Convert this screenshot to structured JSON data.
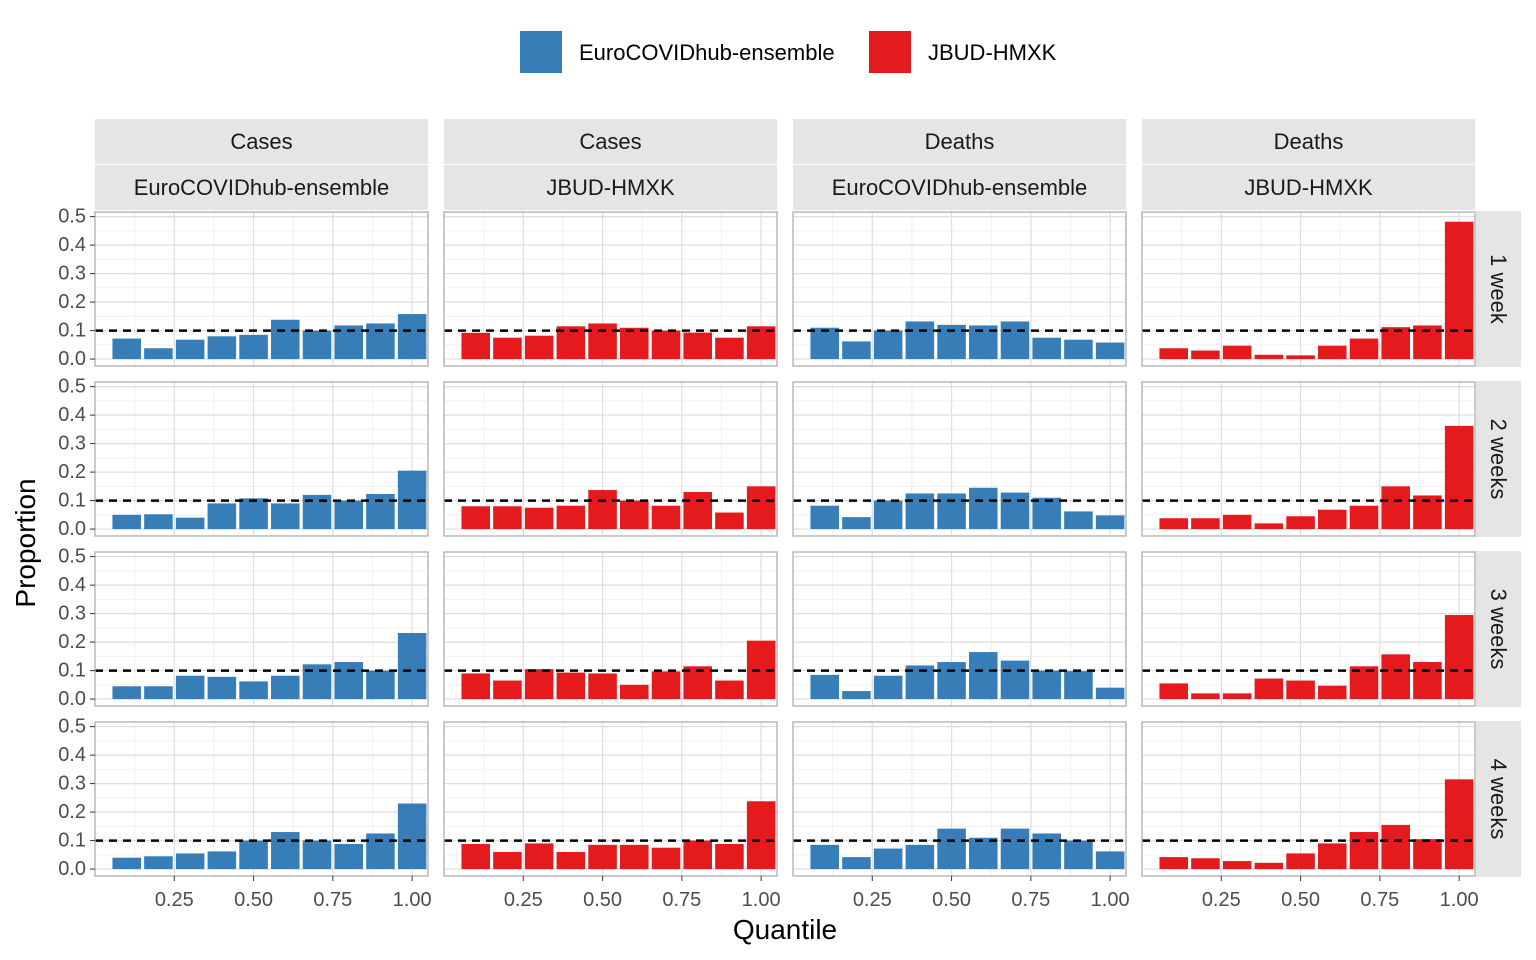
{
  "legend": {
    "items": [
      {
        "label": "EuroCOVIDhub-ensemble",
        "color": "#377EB8"
      },
      {
        "label": "JBUD-HMXK",
        "color": "#E41A1C"
      }
    ]
  },
  "chart_data": {
    "type": "bar",
    "xlabel": "Quantile",
    "ylabel": "Proportion",
    "xlim": [
      0,
      1.05
    ],
    "ylim": [
      0,
      0.5
    ],
    "xticks": [
      "0.25",
      "0.50",
      "0.75",
      "1.00"
    ],
    "yticks": [
      "0.0",
      "0.1",
      "0.2",
      "0.3",
      "0.4",
      "0.5"
    ],
    "reference_line": 0.1,
    "bins": [
      0.1,
      0.2,
      0.3,
      0.4,
      0.5,
      0.6,
      0.7,
      0.8,
      0.9,
      1.0
    ],
    "columns": [
      {
        "top": "Cases",
        "model": "EuroCOVIDhub-ensemble",
        "color": "#377EB8"
      },
      {
        "top": "Cases",
        "model": "JBUD-HMXK",
        "color": "#E41A1C"
      },
      {
        "top": "Deaths",
        "model": "EuroCOVIDhub-ensemble",
        "color": "#377EB8"
      },
      {
        "top": "Deaths",
        "model": "JBUD-HMXK",
        "color": "#E41A1C"
      }
    ],
    "rows": [
      "1 week",
      "2 weeks",
      "3 weeks",
      "4 weeks"
    ],
    "values": [
      [
        [
          0.072,
          0.038,
          0.068,
          0.08,
          0.085,
          0.138,
          0.1,
          0.118,
          0.125,
          0.158
        ],
        [
          0.092,
          0.075,
          0.082,
          0.115,
          0.125,
          0.11,
          0.1,
          0.093,
          0.075,
          0.115
        ],
        [
          0.11,
          0.062,
          0.1,
          0.132,
          0.12,
          0.118,
          0.132,
          0.075,
          0.068,
          0.058
        ],
        [
          0.038,
          0.03,
          0.047,
          0.015,
          0.013,
          0.047,
          0.072,
          0.112,
          0.118,
          0.482
        ]
      ],
      [
        [
          0.05,
          0.052,
          0.04,
          0.09,
          0.108,
          0.09,
          0.12,
          0.1,
          0.123,
          0.205
        ],
        [
          0.08,
          0.08,
          0.075,
          0.082,
          0.137,
          0.1,
          0.082,
          0.13,
          0.058,
          0.15
        ],
        [
          0.082,
          0.042,
          0.1,
          0.125,
          0.125,
          0.145,
          0.128,
          0.11,
          0.062,
          0.048
        ],
        [
          0.038,
          0.038,
          0.05,
          0.02,
          0.045,
          0.068,
          0.082,
          0.15,
          0.118,
          0.362
        ]
      ],
      [
        [
          0.045,
          0.045,
          0.082,
          0.078,
          0.062,
          0.082,
          0.122,
          0.13,
          0.1,
          0.232
        ],
        [
          0.09,
          0.065,
          0.105,
          0.093,
          0.09,
          0.05,
          0.097,
          0.115,
          0.065,
          0.205
        ],
        [
          0.085,
          0.028,
          0.082,
          0.118,
          0.13,
          0.165,
          0.135,
          0.1,
          0.098,
          0.04
        ],
        [
          0.055,
          0.02,
          0.02,
          0.072,
          0.065,
          0.047,
          0.115,
          0.157,
          0.13,
          0.295
        ]
      ],
      [
        [
          0.04,
          0.045,
          0.055,
          0.062,
          0.1,
          0.13,
          0.1,
          0.088,
          0.125,
          0.23
        ],
        [
          0.088,
          0.06,
          0.09,
          0.06,
          0.085,
          0.085,
          0.075,
          0.1,
          0.088,
          0.238
        ],
        [
          0.085,
          0.042,
          0.072,
          0.085,
          0.142,
          0.11,
          0.142,
          0.125,
          0.1,
          0.062
        ],
        [
          0.042,
          0.038,
          0.028,
          0.022,
          0.055,
          0.09,
          0.13,
          0.155,
          0.105,
          0.315
        ]
      ]
    ]
  }
}
